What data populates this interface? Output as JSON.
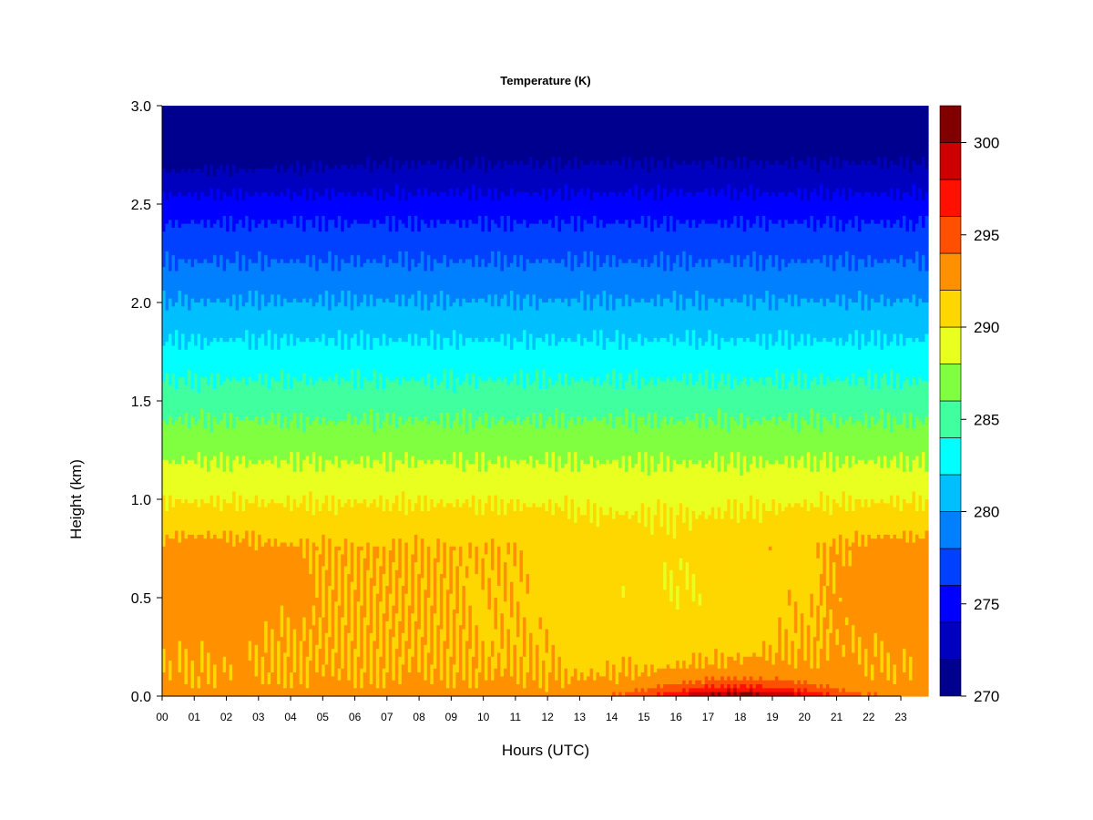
{
  "chart_data": {
    "type": "heatmap",
    "title": "Temperature (K)",
    "xlabel": "Hours (UTC)",
    "ylabel": "Height (km)",
    "x_ticks": [
      "00",
      "01",
      "02",
      "03",
      "04",
      "05",
      "06",
      "07",
      "08",
      "09",
      "10",
      "11",
      "12",
      "13",
      "14",
      "15",
      "16",
      "17",
      "18",
      "19",
      "20",
      "21",
      "22",
      "23"
    ],
    "xlim": [
      0,
      23.85
    ],
    "y_ticks": [
      "0.0",
      "0.5",
      "1.0",
      "1.5",
      "2.0",
      "2.5",
      "3.0"
    ],
    "ylim": [
      0.0,
      3.0
    ],
    "colorbar": {
      "ticks": [
        "270",
        "275",
        "280",
        "285",
        "290",
        "295",
        "300"
      ],
      "range": [
        270,
        302
      ],
      "levels": [
        {
          "min": 270,
          "max": 272,
          "color": "#00008f"
        },
        {
          "min": 272,
          "max": 274,
          "color": "#0000bf"
        },
        {
          "min": 274,
          "max": 276,
          "color": "#0000ff"
        },
        {
          "min": 276,
          "max": 278,
          "color": "#0040ff"
        },
        {
          "min": 278,
          "max": 280,
          "color": "#0080ff"
        },
        {
          "min": 280,
          "max": 282,
          "color": "#00bfff"
        },
        {
          "min": 282,
          "max": 284,
          "color": "#00ffff"
        },
        {
          "min": 284,
          "max": 286,
          "color": "#40ff9f"
        },
        {
          "min": 286,
          "max": 288,
          "color": "#80ff40"
        },
        {
          "min": 288,
          "max": 290,
          "color": "#e8ff20"
        },
        {
          "min": 290,
          "max": 292,
          "color": "#ffd700"
        },
        {
          "min": 292,
          "max": 294,
          "color": "#ff9000"
        },
        {
          "min": 294,
          "max": 296,
          "color": "#ff5000"
        },
        {
          "min": 296,
          "max": 298,
          "color": "#ff1000"
        },
        {
          "min": 298,
          "max": 300,
          "color": "#cc0000"
        },
        {
          "min": 300,
          "max": 302,
          "color": "#800000"
        }
      ]
    },
    "field_description_values": {
      "surface_night_K": 292.5,
      "surface_afternoon_peak_K": 300.5,
      "afternoon_peak_hour": 19,
      "residual_layer_K_at_0_5km": 292.5,
      "at_1_0km_K": 291,
      "at_1_5km_K": 287,
      "at_2_0km_K": 283,
      "at_2_5km_K": 277.5,
      "at_3_0km_K": 274
    }
  }
}
